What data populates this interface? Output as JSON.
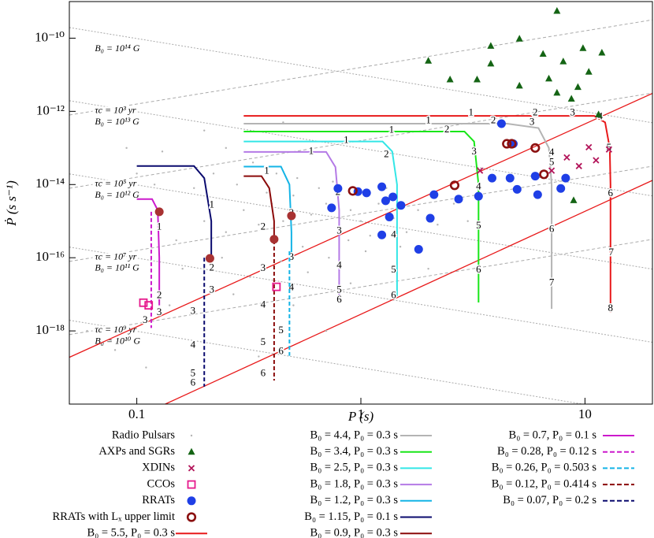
{
  "chart_data": {
    "type": "scatter",
    "x_label": "P (s)",
    "y_label": "Ṗ (s s⁻¹)",
    "log_x": true,
    "log_y": true,
    "xlim": [
      0.05,
      20
    ],
    "ylim": [
      1e-20,
      1e-09
    ],
    "xticks": [
      0.1,
      1,
      10
    ],
    "yticks": [
      {
        "value": 1e-18,
        "label": "10⁻¹⁸"
      },
      {
        "value": 1e-16,
        "label": "10⁻¹⁶"
      },
      {
        "value": 1e-14,
        "label": "10⁻¹⁴"
      },
      {
        "value": 1e-12,
        "label": "10⁻¹²"
      },
      {
        "value": 1e-10,
        "label": "10⁻¹⁰"
      }
    ],
    "b_lines": [
      {
        "value": 100000000000000.0,
        "label": "B₀ = 10¹⁴ G"
      },
      {
        "value": 10000000000000.0,
        "label": "B₀ = 10¹³ G"
      },
      {
        "value": 1000000000000.0,
        "label": "B₀ = 10¹² G"
      },
      {
        "value": 100000000000.0,
        "label": "B₀ = 10¹¹ G"
      },
      {
        "value": 10000000000.0,
        "label": "B₀ = 10¹⁰ G"
      }
    ],
    "tau_lines": [
      {
        "value": 1000.0,
        "label": "τc = 10³ yr"
      },
      {
        "value": 100000.0,
        "label": "τc = 10⁵ yr"
      },
      {
        "value": 10000000.0,
        "label": "τc = 10⁷ yr"
      },
      {
        "value": 1000000000.0,
        "label": "τc = 10⁹ yr"
      }
    ],
    "reference_lines": [
      {
        "color": "#e8191a",
        "x": [
          0.05,
          20
        ],
        "y": [
          1.9e-19,
          3.1e-12
        ]
      },
      {
        "color": "#e8191a",
        "x": [
          0.134,
          20
        ],
        "y": [
          1e-20,
          1.3e-14
        ]
      }
    ],
    "series": [
      {
        "name": "Radio Pulsars",
        "marker": "dot",
        "color": "#b4b4b4",
        "x": [
          0.15,
          0.2,
          0.25,
          0.3,
          0.35,
          0.4,
          0.45,
          0.5,
          0.55,
          0.6,
          0.7,
          0.8,
          0.9,
          1.0,
          1.1,
          1.2,
          1.4,
          1.6,
          1.8,
          2.2,
          2.6,
          3.0,
          0.12,
          0.18,
          0.22,
          0.28,
          0.33,
          0.38,
          0.42,
          0.52,
          0.65,
          0.75,
          0.95,
          1.3,
          0.16,
          0.24,
          0.32,
          0.44,
          0.58,
          0.72,
          0.88,
          1.05,
          1.5,
          0.27,
          0.5,
          0.9,
          0.14,
          0.2,
          0.1,
          0.13,
          0.09,
          0.25,
          0.06,
          0.08,
          0.11,
          0.35,
          0.7,
          2.0,
          0.45,
          0.2
        ],
        "y": [
          3e-16,
          1e-15,
          5e-16,
          2e-15,
          8e-16,
          3e-15,
          1e-15,
          5e-15,
          2e-16,
          1.5e-15,
          3e-15,
          6e-16,
          2e-15,
          1e-15,
          4e-16,
          3e-15,
          1.2e-15,
          5e-16,
          2e-15,
          8e-16,
          3e-15,
          1e-15,
          1e-14,
          8e-15,
          2e-14,
          1e-14,
          4e-14,
          6e-15,
          2e-14,
          1.5e-14,
          8e-15,
          1.2e-14,
          7e-15,
          8e-15,
          5e-17,
          1e-16,
          3e-17,
          8e-17,
          4e-17,
          1e-16,
          3e-16,
          1.5e-16,
          2e-16,
          1e-17,
          5e-18,
          2e-17,
          5e-18,
          1e-18,
          2e-14,
          8e-14,
          1e-13,
          1e-13,
          1e-18,
          3e-19,
          1e-19,
          2e-19,
          1e-18,
          5e-17,
          5e-13,
          3e-13
        ]
      },
      {
        "name": "AXPs and SGRs",
        "marker": "triangle",
        "color": "#146414",
        "x": [
          7.5,
          5.1,
          3.8,
          6.5,
          9.8,
          2.0,
          11.9,
          3.8,
          8.0,
          2.5,
          3.3,
          5.1,
          6.9,
          10.4,
          9.3,
          7.5,
          8.7,
          11.5,
          8.9
        ],
        "y": [
          5.5e-10,
          9.6e-11,
          6.1e-11,
          3.7e-11,
          5.3e-11,
          2.4e-11,
          4e-11,
          2e-11,
          2.3e-11,
          7.4e-12,
          7.4e-12,
          5e-12,
          7.8e-12,
          1.2e-11,
          4.6e-12,
          3.2e-12,
          2.2e-12,
          8.2e-13,
          3.7e-15
        ]
      },
      {
        "name": "XDINs",
        "marker": "cross",
        "color": "#b3155a",
        "x": [
          3.4,
          8.3,
          10.4,
          9.4,
          11.2,
          12.8,
          7.1
        ],
        "y": [
          2.4e-14,
          5.5e-14,
          1.05e-13,
          3.2e-14,
          4.6e-14,
          9.1e-14,
          2.4e-14
        ]
      },
      {
        "name": "CCOs",
        "marker": "square",
        "color": "#e6198c",
        "x": [
          0.107,
          0.113,
          0.42
        ],
        "y": [
          5.9e-18,
          5e-18,
          1.6e-17
        ]
      },
      {
        "name": "RRATs",
        "marker": "disc",
        "color": "#1f3fe6",
        "x": [
          0.79,
          0.74,
          0.97,
          1.06,
          1.24,
          1.29,
          1.34,
          1.24,
          1.51,
          1.39,
          1.81,
          2.04,
          2.12,
          2.73,
          3.35,
          4.24,
          3.85,
          4.79,
          4.63,
          4.98,
          6.0,
          6.15,
          7.8,
          8.2
        ],
        "y": [
          7.8e-15,
          2.3e-15,
          6.4e-15,
          5.9e-15,
          8.7e-15,
          3.6e-15,
          1.3e-15,
          4.2e-16,
          2.7e-15,
          4.6e-15,
          1.7e-16,
          1.2e-15,
          5.3e-15,
          4e-15,
          4.8e-15,
          4.6e-13,
          1.5e-14,
          1.3e-13,
          1.5e-14,
          7.4e-15,
          1.7e-14,
          5.3e-15,
          7.8e-15,
          1.5e-14
        ]
      },
      {
        "name": "RRATs with Lₓ upper limit",
        "marker": "ring",
        "color": "#8b1010",
        "x": [
          0.92,
          2.62,
          4.48,
          4.71,
          6.0,
          6.56
        ],
        "y": [
          6.7e-15,
          9.5e-15,
          1.3e-13,
          1.3e-13,
          1e-13,
          1.9e-14
        ]
      },
      {
        "name": "B₀ = 5.5, P₀ = 0.3 s",
        "marker": "line",
        "color": "#e8191a",
        "x": [
          0.3,
          11,
          12.3,
          12.9,
          13,
          13
        ],
        "y": [
          7.5e-13,
          7.5e-13,
          5e-13,
          1e-13,
          1e-14,
          3.2e-18
        ],
        "labels": [
          "1",
          "2",
          "3",
          "4",
          "5",
          "6",
          "7",
          "8"
        ],
        "labels_x": [
          3.1,
          6.0,
          8.8,
          11.7,
          12.8,
          13.0,
          13.1,
          13.0
        ],
        "labels_y": [
          9e-13,
          9e-13,
          9e-13,
          7.1e-13,
          1e-13,
          5.6e-15,
          1.35e-16,
          4e-18
        ]
      },
      {
        "name": "B₀ =  4.4, P₀ = 0.3 s",
        "marker": "line",
        "color": "#b4b4b4",
        "x": [
          0.3,
          4.5,
          6.2,
          6.9,
          7.1,
          7.1
        ],
        "y": [
          4.6e-13,
          4.6e-13,
          3.5e-13,
          1e-13,
          1e-14,
          4e-18
        ],
        "labels": [
          "1",
          "2",
          "3",
          "4",
          "5",
          "6",
          "7"
        ],
        "labels_x": [
          2.0,
          3.9,
          5.8,
          7.1,
          7.1,
          7.1,
          7.1
        ],
        "labels_y": [
          5.5e-13,
          5.5e-13,
          5e-13,
          7.4e-14,
          4e-14,
          5.9e-16,
          2e-17
        ]
      },
      {
        "name": "B₀ =  3.4, P₀ = 0.3 s",
        "marker": "line",
        "color": "#19e619",
        "x": [
          0.3,
          2.9,
          3.2,
          3.35,
          3.35
        ],
        "y": [
          2.8e-13,
          2.8e-13,
          1.5e-13,
          1e-14,
          6e-18
        ],
        "labels": [
          "1",
          "2",
          "3",
          "4",
          "5",
          "6"
        ],
        "labels_x": [
          1.37,
          2.42,
          3.2,
          3.35,
          3.35,
          3.35
        ],
        "labels_y": [
          3e-13,
          3.1e-13,
          7.8e-14,
          8.6e-15,
          7.4e-16,
          4.6e-17
        ]
      },
      {
        "name": "B₀ =  2.5, P₀ = 0.3 s",
        "marker": "line",
        "color": "#33e6e6",
        "x": [
          0.3,
          1.25,
          1.38,
          1.45,
          1.45
        ],
        "y": [
          1.5e-13,
          1.5e-13,
          8e-14,
          1e-14,
          9e-18
        ],
        "labels": [
          "1",
          "2",
          "3",
          "4",
          "5",
          "6"
        ],
        "labels_x": [
          0.86,
          1.3,
          1.4,
          1.4,
          1.4,
          1.4
        ],
        "labels_y": [
          1.6e-13,
          6.5e-14,
          4.2e-15,
          4.1e-16,
          4.6e-17,
          9e-18
        ]
      },
      {
        "name": "B₀ =  1.8, P₀ = 0.3 s",
        "marker": "line",
        "color": "#b47ae6",
        "x": [
          0.3,
          0.7,
          0.77,
          0.8,
          0.8
        ],
        "y": [
          7.8e-14,
          7.8e-14,
          3e-14,
          2e-15,
          7e-18
        ],
        "labels": [
          "1",
          "2",
          "3",
          "4",
          "5",
          "6"
        ],
        "labels_x": [
          0.6,
          0.79,
          0.8,
          0.8,
          0.8,
          0.8
        ],
        "labels_y": [
          8e-14,
          6e-15,
          5.3e-16,
          6e-17,
          1.3e-17,
          7e-18
        ]
      },
      {
        "name": "B₀ =  1.2, P₀ = 0.3 s",
        "marker": "line",
        "color": "#14b4e6",
        "x": [
          0.3,
          0.44,
          0.48,
          0.49,
          0.49
        ],
        "y": [
          3.1e-14,
          3.1e-14,
          1e-14,
          5e-16,
          1e-16
        ],
        "labels": [
          "1",
          "2",
          "3",
          "4"
        ],
        "labels_x": [
          0.38,
          0.49,
          0.49,
          0.49
        ],
        "labels_y": [
          2.5e-14,
          1.6e-15,
          1e-16,
          1.5e-17
        ]
      },
      {
        "name": "B₀ = 1.15, P₀ = 0.1 s",
        "marker": "line",
        "color": "#0a0a6e",
        "x": [
          0.1,
          0.18,
          0.2,
          0.215,
          0.215
        ],
        "y": [
          3.2e-14,
          3.2e-14,
          1.5e-14,
          1e-15,
          1e-16
        ],
        "labels": [
          "1",
          "2",
          "3"
        ],
        "labels_x": [
          0.216,
          0.216,
          0.216
        ],
        "labels_y": [
          2.7e-15,
          5.2e-17,
          1.3e-17
        ]
      },
      {
        "name": "B₀ =  0.9, P₀ = 0.3 s",
        "marker": "line",
        "color": "#8b0a0a",
        "x": [
          0.3,
          0.36,
          0.39,
          0.41,
          0.41
        ],
        "y": [
          1.7e-14,
          1.7e-14,
          8e-15,
          1e-15,
          3e-16
        ],
        "labels": [
          "1",
          "2",
          "3"
        ],
        "labels_x": [
          0.38,
          0.366,
          0.366
        ],
        "labels_y": [
          2.3e-14,
          6.8e-16,
          5e-17
        ]
      },
      {
        "name": "B₀ =  0.7, P₀ =   0.1 s",
        "marker": "line",
        "color": "#cc1acc",
        "x": [
          0.1,
          0.117,
          0.124,
          0.126,
          0.126
        ],
        "y": [
          4e-15,
          4e-15,
          2e-15,
          1e-16,
          5e-18
        ],
        "labels": [
          "1",
          "2",
          "3"
        ],
        "labels_x": [
          0.126,
          0.126,
          0.126
        ],
        "labels_y": [
          6.8e-16,
          9.1e-18,
          3.1e-18
        ]
      },
      {
        "name": "B₀ = 0.28, P₀ = 0.12 s",
        "marker": "line",
        "dash": true,
        "color": "#cc1acc",
        "x": [
          0.116,
          0.116
        ],
        "y": [
          1.8e-15,
          1.2e-18
        ],
        "labels": [
          "3"
        ],
        "labels_x": [
          0.109
        ],
        "labels_y": [
          1.9e-18
        ]
      },
      {
        "name": "B₀ = 0.26, P₀ = 0.503 s",
        "marker": "line",
        "dash": true,
        "color": "#14b4e6",
        "x": [
          0.48,
          0.48
        ],
        "y": [
          1.5e-16,
          2.1e-19
        ],
        "labels": [
          "5",
          "6"
        ],
        "labels_x": [
          0.44,
          0.44
        ],
        "labels_y": [
          1e-18,
          2.7e-19
        ]
      },
      {
        "name": "B₀ = 0.12, P₀ = 0.414 s",
        "marker": "line",
        "dash": true,
        "color": "#8b0a0a",
        "x": [
          0.41,
          0.41
        ],
        "y": [
          3e-16,
          4.4e-20
        ],
        "labels": [
          "4",
          "5",
          "6"
        ],
        "labels_x": [
          0.366,
          0.366,
          0.366
        ],
        "labels_y": [
          5e-18,
          4.8e-19,
          6.8e-20
        ]
      },
      {
        "name": "B₀ = 0.07, P₀ =   0.2 s",
        "marker": "line",
        "dash": true,
        "color": "#0a0a6e",
        "x": [
          0.2,
          0.2
        ],
        "y": [
          1e-16,
          3e-20
        ],
        "labels": [
          "3",
          "4",
          "5",
          "6"
        ],
        "labels_x": [
          0.178,
          0.178,
          0.178,
          0.178
        ],
        "labels_y": [
          3.4e-18,
          4e-19,
          6.8e-20,
          3.7e-20
        ]
      },
      {
        "marker": "disc",
        "color": "#a83232",
        "x": [
          0.126,
          0.212,
          0.41,
          0.49
        ],
        "y": [
          1.8e-15,
          9.6e-17,
          3.2e-16,
          1.4e-15
        ]
      }
    ]
  }
}
